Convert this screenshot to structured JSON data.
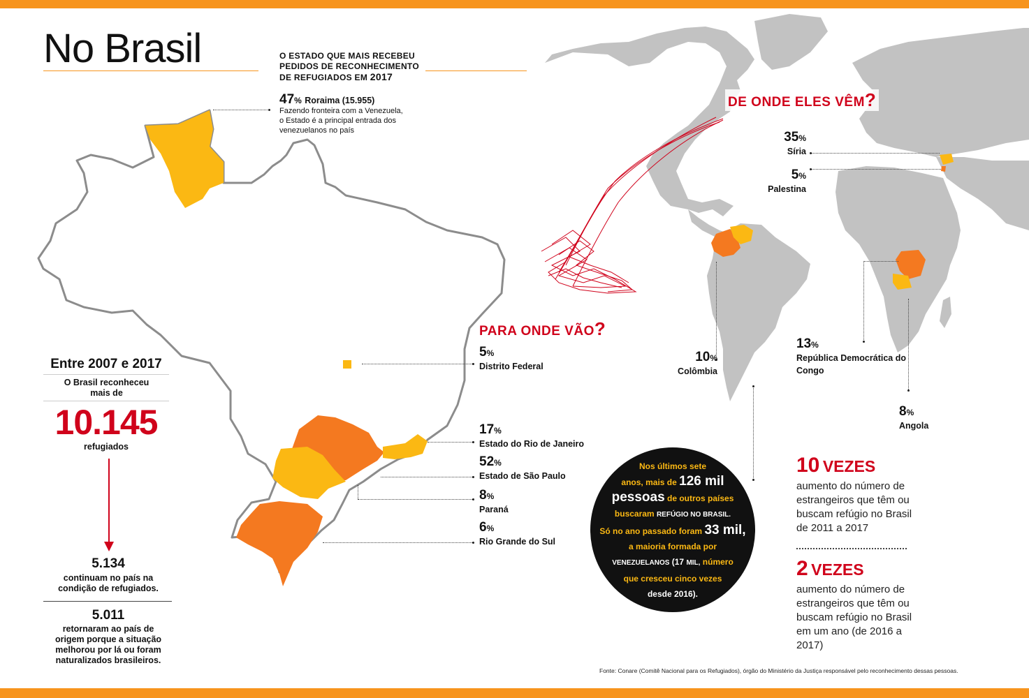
{
  "title": "No Brasil",
  "state_most": {
    "heading": "O ESTADO QUE MAIS RECEBEU PEDIDOS DE RECONHECIMENTO DE REFUGIADOS EM",
    "heading_year": "2017",
    "pct": "47",
    "pct_unit": "%",
    "state": "Roraima (15.955)",
    "note": "Fazendo fronteira com a Venezuela, o Estado é a principal entrada dos venezuelanos no país"
  },
  "period": {
    "heading": "Entre 2007 e 2017",
    "subheading": "O Brasil reconheceu mais de",
    "total": "10.145",
    "total_label": "refugiados",
    "stay_value": "5.134",
    "stay_label": "continuam no país na condição de refugiados.",
    "left_value": "5.011",
    "left_label": "retornaram ao país de origem porque a situação melhorou por lá ou foram naturalizados brasileiros."
  },
  "destinations": {
    "heading": "PARA ONDE VÃO",
    "heading_q": "?",
    "items": [
      {
        "pct": "5",
        "unit": "%",
        "name": "Distrito Federal"
      },
      {
        "pct": "17",
        "unit": "%",
        "name": "Estado do Rio de Janeiro"
      },
      {
        "pct": "52",
        "unit": "%",
        "name": "Estado de São Paulo"
      },
      {
        "pct": "8",
        "unit": "%",
        "name": "Paraná"
      },
      {
        "pct": "6",
        "unit": "%",
        "name": "Rio Grande do Sul"
      }
    ]
  },
  "origins": {
    "heading": "DE ONDE ELES VÊM",
    "heading_q": "?",
    "items": [
      {
        "pct": "35",
        "unit": "%",
        "name": "Síria"
      },
      {
        "pct": "5",
        "unit": "%",
        "name": "Palestina"
      },
      {
        "pct": "10",
        "unit": "%",
        "name": "Colômbia"
      },
      {
        "pct": "13",
        "unit": "%",
        "name": "República Democrática do Congo"
      },
      {
        "pct": "8",
        "unit": "%",
        "name": "Angola"
      }
    ]
  },
  "circle": {
    "l1": "Nos últimos sete",
    "l2a": "anos, mais de",
    "l2b": "126 mil",
    "l3a": "pessoas",
    "l3b": "de outros países",
    "l4a": "buscaram",
    "l4b": "REFÚGIO NO BRASIL.",
    "l5a": "Só no ano passado foram",
    "l5b": "33 mil,",
    "l6": "a maioria formada por",
    "l7a": "VENEZUELANOS",
    "l7b": "(17",
    "l7c": "MIL,",
    "l7d": "número",
    "l8": "que cresceu cinco vezes",
    "l9": "desde 2016)."
  },
  "stats": [
    {
      "value": "10",
      "unit": "VEZES",
      "desc": "aumento do número de estrangeiros que têm ou buscam refúgio no Brasil de 2011 a 2017"
    },
    {
      "value": "2",
      "unit": "VEZES",
      "desc": "aumento do número de estrangeiros que têm ou buscam refúgio no Brasil em um ano (de 2016 a 2017)"
    }
  ],
  "source": "Fonte: Conare (Comitê Nacional para os Refugiados), órgão do Ministério da Justiça responsável pelo reconhecimento dessas pessoas.",
  "colors": {
    "accent": "#f7941d",
    "red": "#d0021b",
    "dark_orange": "#f47920",
    "yellow": "#fbb813",
    "map_gray": "#c2c2c2"
  }
}
